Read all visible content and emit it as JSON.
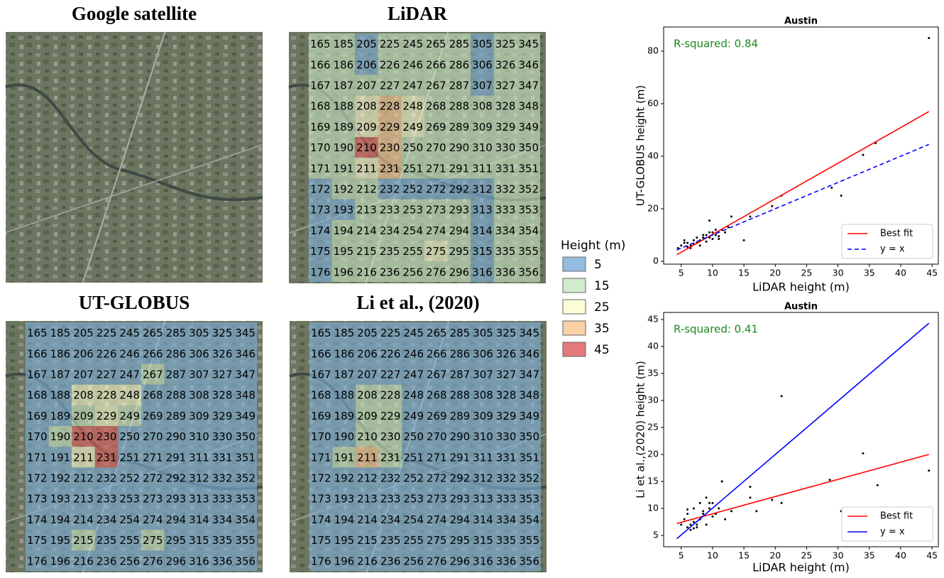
{
  "cell_ids": [
    [
      165,
      185,
      205,
      225,
      245,
      265,
      285,
      305,
      325,
      345
    ],
    [
      166,
      186,
      206,
      226,
      246,
      266,
      286,
      306,
      326,
      346
    ],
    [
      167,
      187,
      207,
      227,
      247,
      267,
      287,
      307,
      327,
      347
    ],
    [
      168,
      188,
      208,
      228,
      248,
      268,
      288,
      308,
      328,
      348
    ],
    [
      169,
      189,
      209,
      229,
      249,
      269,
      289,
      309,
      329,
      349
    ],
    [
      170,
      190,
      210,
      230,
      250,
      270,
      290,
      310,
      330,
      350
    ],
    [
      171,
      191,
      211,
      231,
      251,
      271,
      291,
      311,
      331,
      351
    ],
    [
      172,
      192,
      212,
      232,
      252,
      272,
      292,
      312,
      332,
      352
    ],
    [
      173,
      193,
      213,
      233,
      253,
      273,
      293,
      313,
      333,
      353
    ],
    [
      174,
      194,
      214,
      234,
      254,
      274,
      294,
      314,
      334,
      354
    ],
    [
      175,
      195,
      215,
      235,
      255,
      275,
      295,
      315,
      335,
      355
    ],
    [
      176,
      196,
      216,
      236,
      256,
      276,
      296,
      316,
      336,
      356
    ]
  ],
  "chart_data": [
    {
      "type": "image",
      "title": "Google satellite"
    },
    {
      "type": "heatmap",
      "title": "LiDAR",
      "heights": [
        [
          15,
          15,
          5,
          15,
          15,
          15,
          15,
          5,
          15,
          15
        ],
        [
          15,
          15,
          5,
          15,
          15,
          15,
          15,
          5,
          15,
          15
        ],
        [
          15,
          15,
          15,
          15,
          15,
          15,
          15,
          5,
          15,
          15
        ],
        [
          15,
          15,
          25,
          35,
          25,
          15,
          15,
          15,
          15,
          15
        ],
        [
          15,
          15,
          25,
          35,
          25,
          15,
          15,
          15,
          15,
          15
        ],
        [
          15,
          15,
          45,
          35,
          15,
          15,
          15,
          15,
          15,
          15
        ],
        [
          15,
          15,
          25,
          35,
          15,
          15,
          15,
          15,
          15,
          15
        ],
        [
          5,
          15,
          15,
          5,
          5,
          5,
          5,
          5,
          15,
          15
        ],
        [
          5,
          5,
          15,
          15,
          15,
          15,
          15,
          5,
          15,
          15
        ],
        [
          5,
          15,
          15,
          15,
          15,
          15,
          15,
          5,
          15,
          15
        ],
        [
          5,
          15,
          15,
          15,
          15,
          25,
          15,
          5,
          15,
          15
        ],
        [
          5,
          15,
          15,
          15,
          15,
          15,
          15,
          5,
          15,
          15
        ]
      ]
    },
    {
      "type": "heatmap",
      "title": "UT-GLOBUS",
      "heights": [
        [
          5,
          5,
          5,
          5,
          5,
          5,
          5,
          5,
          5,
          5
        ],
        [
          5,
          5,
          5,
          5,
          5,
          5,
          5,
          5,
          5,
          5
        ],
        [
          5,
          5,
          5,
          5,
          5,
          15,
          5,
          5,
          5,
          5
        ],
        [
          5,
          5,
          25,
          25,
          25,
          5,
          5,
          5,
          5,
          5
        ],
        [
          5,
          5,
          15,
          25,
          15,
          5,
          5,
          5,
          5,
          5
        ],
        [
          5,
          15,
          45,
          45,
          5,
          5,
          5,
          5,
          5,
          5
        ],
        [
          5,
          5,
          25,
          45,
          5,
          5,
          5,
          5,
          5,
          5
        ],
        [
          5,
          5,
          5,
          5,
          5,
          5,
          5,
          5,
          5,
          5
        ],
        [
          5,
          5,
          5,
          5,
          5,
          5,
          5,
          5,
          5,
          5
        ],
        [
          5,
          5,
          5,
          5,
          5,
          5,
          5,
          5,
          5,
          5
        ],
        [
          5,
          5,
          15,
          5,
          5,
          15,
          5,
          5,
          5,
          5
        ],
        [
          5,
          5,
          5,
          5,
          5,
          5,
          5,
          5,
          5,
          5
        ]
      ]
    },
    {
      "type": "heatmap",
      "title": "Li et al., (2020)",
      "heights": [
        [
          5,
          5,
          5,
          5,
          5,
          5,
          5,
          5,
          5,
          5
        ],
        [
          5,
          5,
          5,
          5,
          5,
          5,
          5,
          5,
          5,
          5
        ],
        [
          5,
          5,
          5,
          5,
          5,
          5,
          5,
          5,
          5,
          5
        ],
        [
          5,
          5,
          15,
          15,
          5,
          5,
          5,
          5,
          5,
          5
        ],
        [
          5,
          5,
          15,
          15,
          5,
          5,
          5,
          5,
          5,
          5
        ],
        [
          5,
          5,
          15,
          15,
          5,
          5,
          5,
          5,
          5,
          5
        ],
        [
          5,
          15,
          35,
          15,
          5,
          5,
          5,
          5,
          5,
          5
        ],
        [
          5,
          5,
          5,
          5,
          5,
          5,
          5,
          5,
          5,
          5
        ],
        [
          5,
          5,
          5,
          5,
          5,
          5,
          5,
          5,
          5,
          5
        ],
        [
          5,
          5,
          5,
          5,
          5,
          5,
          5,
          5,
          5,
          5
        ],
        [
          5,
          5,
          5,
          5,
          5,
          5,
          5,
          5,
          5,
          5
        ],
        [
          5,
          5,
          5,
          5,
          5,
          5,
          5,
          5,
          5,
          5
        ]
      ]
    },
    {
      "type": "legend",
      "title": "Height (m)",
      "values": [
        5,
        15,
        25,
        35,
        45
      ],
      "colors": [
        "#7fb2dc",
        "#c9e7c3",
        "#fbfbcf",
        "#fbc896",
        "#e06363"
      ]
    },
    {
      "type": "scatter",
      "title": "Austin",
      "annotation": "R-squared: 0.84",
      "annotation_color": "#1a8a1a",
      "xlabel": "LiDAR height (m)",
      "ylabel": "UT-GLOBUS height (m)",
      "xlim": [
        2.2,
        46
      ],
      "ylim": [
        -1.1,
        89.2
      ],
      "xticks": [
        5,
        10,
        15,
        20,
        25,
        30,
        35,
        40,
        45
      ],
      "yticks": [
        0,
        20,
        40,
        60,
        80
      ],
      "legend": "lower right",
      "points": {
        "color": "#000000",
        "x": [
          4.5,
          5,
          5.5,
          6,
          6,
          6.5,
          7,
          7,
          7.5,
          8,
          8,
          8.5,
          9,
          9,
          9.5,
          10,
          10,
          10.5,
          11,
          11.5,
          12,
          5.5,
          6.5,
          7.5,
          8.5,
          9.5,
          10.5,
          13,
          15,
          16,
          19.5,
          21,
          9.5,
          30.5,
          34,
          36,
          44.5,
          29,
          12.5,
          11
        ],
        "y": [
          5,
          6,
          7,
          5.5,
          7,
          6,
          8,
          6.5,
          7,
          8,
          6,
          9,
          7.5,
          10,
          9,
          8.5,
          11,
          10,
          9.5,
          12,
          11,
          8,
          5,
          9,
          10,
          11,
          12,
          17,
          8,
          17,
          21,
          25,
          15.5,
          25,
          40.5,
          45,
          85,
          28,
          13,
          8.5
        ]
      },
      "series": [
        {
          "name": "Best fit",
          "color": "#ff0000",
          "dash": false,
          "x": [
            4.3,
            44.5
          ],
          "y": [
            2.5,
            57
          ]
        },
        {
          "name": "y = x",
          "color": "#0000ff",
          "dash": true,
          "x": [
            4.3,
            44.5
          ],
          "y": [
            4.3,
            44.5
          ]
        }
      ]
    },
    {
      "type": "scatter",
      "title": "Austin",
      "annotation": "R-squared: 0.41",
      "annotation_color": "#1a8a1a",
      "xlabel": "LiDAR height (m)",
      "ylabel": "Li et al.,(2020) height (m)",
      "xlim": [
        2.2,
        46
      ],
      "ylim": [
        2.9,
        46.3
      ],
      "xticks": [
        5,
        10,
        15,
        20,
        25,
        30,
        35,
        40,
        45
      ],
      "yticks": [
        5,
        10,
        15,
        20,
        25,
        30,
        35,
        40,
        45
      ],
      "legend": "lower right",
      "points": {
        "color": "#000000",
        "x": [
          5,
          5.5,
          6,
          6,
          6.5,
          7,
          7,
          7.5,
          8,
          8,
          8.5,
          9,
          9,
          9.5,
          10,
          10,
          10.5,
          11,
          11.5,
          12,
          6.5,
          7.5,
          8.5,
          9.5,
          10.5,
          13,
          16,
          16,
          17,
          19.5,
          21,
          21,
          28.7,
          30.5,
          34,
          36.3,
          44.5,
          11.5,
          6,
          7
        ],
        "y": [
          7,
          8,
          6.5,
          9,
          7,
          7.5,
          10,
          6.5,
          8,
          11,
          9,
          7,
          12,
          10,
          8.5,
          11,
          9,
          10,
          15,
          8,
          6,
          7,
          9.5,
          11,
          9,
          9.5,
          14,
          12,
          9.5,
          11.6,
          30.8,
          11,
          15.3,
          9.5,
          20.2,
          14.3,
          17,
          15,
          9.8,
          6.3
        ]
      },
      "series": [
        {
          "name": "Best fit",
          "color": "#ff0000",
          "dash": false,
          "x": [
            4.3,
            44.5
          ],
          "y": [
            7.2,
            20
          ]
        },
        {
          "name": "y = x",
          "color": "#0000ff",
          "dash": false,
          "x": [
            4.3,
            44.5
          ],
          "y": [
            4.4,
            44.3
          ]
        }
      ]
    }
  ]
}
